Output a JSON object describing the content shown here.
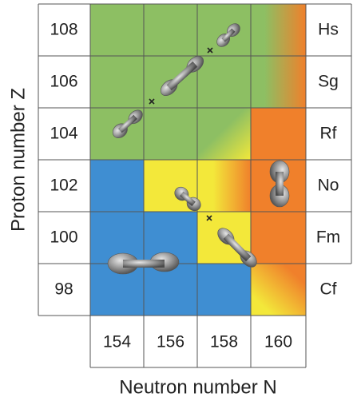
{
  "y_axis_label": "Proton number Z",
  "x_axis_label": "Neutron number N",
  "rows": [
    {
      "z": 108,
      "element": "Hs"
    },
    {
      "z": 106,
      "element": "Sg"
    },
    {
      "z": 104,
      "element": "Rf"
    },
    {
      "z": 102,
      "element": "No"
    },
    {
      "z": 100,
      "element": "Fm"
    },
    {
      "z": 98,
      "element": "Cf"
    }
  ],
  "columns": [
    154,
    156,
    158,
    160
  ]
}
